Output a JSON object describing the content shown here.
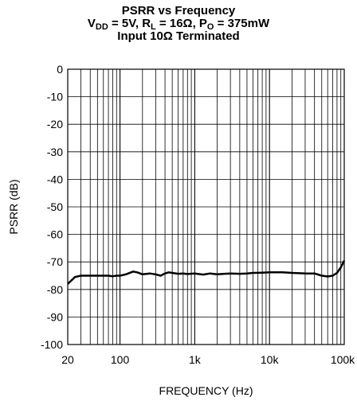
{
  "chart_data": {
    "type": "line",
    "title_line1": "PSRR vs Frequency",
    "title_line2": {
      "v": "V",
      "v_sub": "DD",
      "v_rest": " = 5V, R",
      "r_sub": "L",
      "r_rest": " = 16Ω, P",
      "p_sub": "O",
      "p_rest": " = 375mW"
    },
    "title_line3": "Input 10Ω Terminated",
    "xlabel": "FREQUENCY (Hz)",
    "ylabel": "PSRR (dB)",
    "x_scale": "log",
    "xlim": [
      20,
      100000
    ],
    "ylim": [
      -100,
      0
    ],
    "grid": true,
    "x_ticks": [
      {
        "value": 20,
        "label": "20"
      },
      {
        "value": 100,
        "label": "100"
      },
      {
        "value": 1000,
        "label": "1k"
      },
      {
        "value": 10000,
        "label": "10k"
      },
      {
        "value": 100000,
        "label": "100k"
      }
    ],
    "y_ticks": [
      0,
      -10,
      -20,
      -30,
      -40,
      -50,
      -60,
      -70,
      -80,
      -90,
      -100
    ],
    "series": [
      {
        "x": [
          20,
          25,
          30,
          40,
          50,
          60,
          70,
          80,
          90,
          100,
          120,
          150,
          170,
          200,
          250,
          300,
          350,
          400,
          450,
          500,
          600,
          700,
          800,
          1000,
          1300,
          1600,
          2000,
          2500,
          3000,
          4000,
          5000,
          6000,
          8000,
          10000,
          15000,
          20000,
          30000,
          40000,
          50000,
          60000,
          70000,
          80000,
          90000,
          100000
        ],
        "y": [
          -78,
          -75.5,
          -75,
          -75,
          -75,
          -75,
          -75,
          -75.2,
          -75,
          -75,
          -74.5,
          -73.5,
          -73.8,
          -74.5,
          -74.2,
          -74.5,
          -75,
          -74.2,
          -73.8,
          -74,
          -74.3,
          -74.2,
          -74.4,
          -74.2,
          -74.6,
          -74.2,
          -74.5,
          -74.3,
          -74.2,
          -74.3,
          -74.2,
          -74,
          -73.9,
          -73.8,
          -73.8,
          -74,
          -74.2,
          -74.2,
          -75,
          -75.3,
          -75,
          -74,
          -72,
          -69.5
        ]
      }
    ]
  }
}
